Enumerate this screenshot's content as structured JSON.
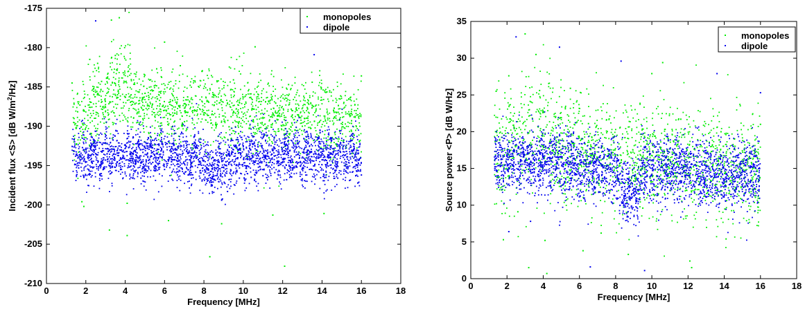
{
  "chart_data": [
    {
      "type": "scatter",
      "xlabel": "Frequency [MHz]",
      "ylabel_parts": [
        "Incident flux <S>  [dB W/m",
        "2",
        "/Hz]"
      ],
      "xlim": [
        0,
        18
      ],
      "ylim": [
        -210,
        -175
      ],
      "xticks": [
        0,
        2,
        4,
        6,
        8,
        10,
        12,
        14,
        16,
        18
      ],
      "yticks": [
        -210,
        -205,
        -200,
        -195,
        -190,
        -185,
        -180,
        -175
      ],
      "legend_position": "top-right",
      "series": [
        {
          "name": "monopoles",
          "color": "#00ee00",
          "values": [
            [
              1.3,
              -184.5
            ],
            [
              1.5,
              -190.2
            ],
            [
              1.7,
              -187.3
            ],
            [
              1.8,
              -199.6
            ],
            [
              1.9,
              -200.2
            ],
            [
              2.1,
              -188.6
            ],
            [
              2.2,
              -181.5
            ],
            [
              2.4,
              -185.2
            ],
            [
              2.6,
              -182.0
            ],
            [
              2.8,
              -184.3
            ],
            [
              3.0,
              -187.6
            ],
            [
              3.2,
              -203.2
            ],
            [
              3.3,
              -176.5
            ],
            [
              3.5,
              -181.0
            ],
            [
              3.7,
              -176.2
            ],
            [
              3.9,
              -183.2
            ],
            [
              4.1,
              -199.8
            ],
            [
              4.1,
              -203.9
            ],
            [
              4.3,
              -186.0
            ],
            [
              4.6,
              -188.4
            ],
            [
              5.0,
              -183.5
            ],
            [
              5.6,
              -182.7
            ],
            [
              6.0,
              -179.3
            ],
            [
              6.2,
              -202.0
            ],
            [
              6.8,
              -182.3
            ],
            [
              7.3,
              -184.8
            ],
            [
              7.9,
              -183.0
            ],
            [
              8.3,
              -206.6
            ],
            [
              8.5,
              -186.1
            ],
            [
              8.9,
              -202.4
            ],
            [
              9.5,
              -184.1
            ],
            [
              10.1,
              -186.2
            ],
            [
              10.6,
              -179.9
            ],
            [
              11.0,
              -189.0
            ],
            [
              11.5,
              -201.3
            ],
            [
              12.1,
              -207.8
            ],
            [
              12.3,
              -184.7
            ],
            [
              13.0,
              -190.0
            ],
            [
              13.5,
              -184.4
            ],
            [
              14.1,
              -201.1
            ],
            [
              15.5,
              -189.3
            ],
            [
              16.0,
              -183.6
            ]
          ]
        },
        {
          "name": "dipole",
          "color": "#0000ee",
          "values": [
            [
              1.9,
              -196.5
            ],
            [
              2.2,
              -193.7
            ],
            [
              2.5,
              -176.6
            ],
            [
              3.0,
              -194.3
            ],
            [
              3.6,
              -193.4
            ],
            [
              4.2,
              -195.2
            ],
            [
              4.8,
              -196.6
            ],
            [
              5.4,
              -194.6
            ],
            [
              6.0,
              -195.5
            ],
            [
              6.6,
              -195.9
            ],
            [
              7.2,
              -196.2
            ],
            [
              7.8,
              -196.6
            ],
            [
              8.4,
              -197.1
            ],
            [
              8.9,
              -199.4
            ],
            [
              9.2,
              -198.3
            ],
            [
              9.8,
              -196.6
            ],
            [
              10.4,
              -196.5
            ],
            [
              11.0,
              -196.3
            ],
            [
              11.6,
              -195.9
            ],
            [
              12.2,
              -196.8
            ],
            [
              13.0,
              -196.7
            ],
            [
              13.6,
              -180.9
            ],
            [
              14.2,
              -196.5
            ],
            [
              14.8,
              -196.6
            ],
            [
              15.4,
              -196.9
            ],
            [
              16.0,
              -196.2
            ]
          ]
        }
      ]
    },
    {
      "type": "scatter",
      "xlabel": "Frequency [MHz]",
      "ylabel": "Source power <P>  [dB W/Hz]",
      "xlim": [
        0,
        18
      ],
      "ylim": [
        0,
        35
      ],
      "xticks": [
        0,
        2,
        4,
        6,
        8,
        10,
        12,
        14,
        16,
        18
      ],
      "yticks": [
        0,
        5,
        10,
        15,
        20,
        25,
        30,
        35
      ],
      "legend_position": "top-right",
      "series": [
        {
          "name": "monopoles",
          "color": "#00ee00",
          "values": [
            [
              1.4,
              25.5
            ],
            [
              1.6,
              12.1
            ],
            [
              1.8,
              5.3
            ],
            [
              2.1,
              27.6
            ],
            [
              2.4,
              20.4
            ],
            [
              2.6,
              9.1
            ],
            [
              3.0,
              33.3
            ],
            [
              3.2,
              1.5
            ],
            [
              3.6,
              30.5
            ],
            [
              3.8,
              25.6
            ],
            [
              4.1,
              5.2
            ],
            [
              4.2,
              0.7
            ],
            [
              4.5,
              17.4
            ],
            [
              5.0,
              21.9
            ],
            [
              5.5,
              25.9
            ],
            [
              6.2,
              3.8
            ],
            [
              6.5,
              21.1
            ],
            [
              7.2,
              6.2
            ],
            [
              7.6,
              17.0
            ],
            [
              8.3,
              15.8
            ],
            [
              8.6,
              9.0
            ],
            [
              8.7,
              3.3
            ],
            [
              9.0,
              13.3
            ],
            [
              9.5,
              9.6
            ],
            [
              10.0,
              27.9
            ],
            [
              10.6,
              29.4
            ],
            [
              11.0,
              12.0
            ],
            [
              11.6,
              21.7
            ],
            [
              12.1,
              2.4
            ],
            [
              12.2,
              1.5
            ],
            [
              12.8,
              14.4
            ],
            [
              13.5,
              12.7
            ],
            [
              14.1,
              5.4
            ],
            [
              15.5,
              15.8
            ],
            [
              16.0,
              21.0
            ]
          ]
        },
        {
          "name": "dipole",
          "color": "#0000ee",
          "values": [
            [
              1.8,
              13.2
            ],
            [
              2.1,
              6.4
            ],
            [
              2.5,
              32.9
            ],
            [
              3.0,
              18.6
            ],
            [
              3.3,
              7.8
            ],
            [
              3.9,
              17.5
            ],
            [
              4.3,
              14.5
            ],
            [
              4.9,
              31.5
            ],
            [
              5.5,
              14.3
            ],
            [
              6.1,
              14.1
            ],
            [
              6.6,
              1.6
            ],
            [
              7.2,
              13.3
            ],
            [
              7.8,
              12.8
            ],
            [
              8.3,
              29.6
            ],
            [
              8.8,
              10.7
            ],
            [
              9.3,
              12.1
            ],
            [
              9.6,
              1.1
            ],
            [
              10.0,
              14.0
            ],
            [
              10.6,
              13.1
            ],
            [
              11.2,
              13.0
            ],
            [
              11.8,
              13.2
            ],
            [
              12.2,
              12.3
            ],
            [
              12.9,
              13.1
            ],
            [
              13.6,
              27.9
            ],
            [
              14.3,
              12.8
            ],
            [
              15.0,
              12.6
            ],
            [
              15.6,
              13.1
            ],
            [
              16.0,
              25.3
            ]
          ]
        }
      ]
    }
  ]
}
